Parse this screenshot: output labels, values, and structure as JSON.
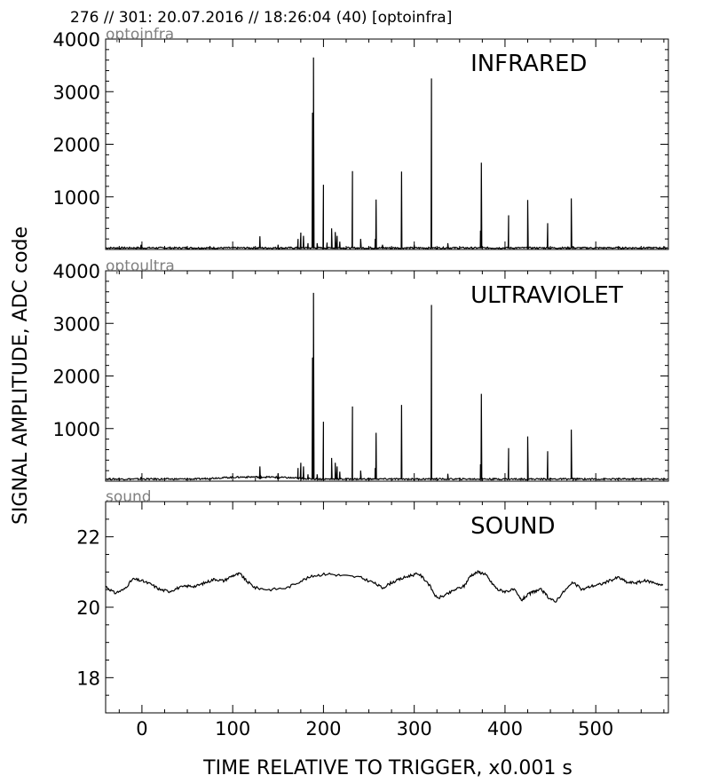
{
  "header": {
    "text": "276 // 301:   20.07.2016 // 18:26:04 (40)  [optoinfra]"
  },
  "axes": {
    "ylabel": "SIGNAL AMPLITUDE,  ADC code",
    "xlabel": "TIME RELATIVE TO TRIGGER,   x0.001 s"
  },
  "chart_data": [
    {
      "type": "line",
      "channel": "optoinfra",
      "title": "INFRARED",
      "xlim": [
        -40,
        580
      ],
      "ylim": [
        0,
        4000
      ],
      "yticks": [
        1000,
        2000,
        3000,
        4000
      ],
      "xticks": [
        0,
        100,
        200,
        300,
        400,
        500
      ],
      "grid": false,
      "baseline": 30,
      "peaks": [
        [
          -1,
          90
        ],
        [
          130,
          250
        ],
        [
          150,
          90
        ],
        [
          172,
          200
        ],
        [
          175,
          320
        ],
        [
          178,
          260
        ],
        [
          183,
          120
        ],
        [
          188,
          2600
        ],
        [
          189,
          3650
        ],
        [
          193,
          120
        ],
        [
          200,
          1230
        ],
        [
          204,
          130
        ],
        [
          209,
          400
        ],
        [
          213,
          330
        ],
        [
          215,
          260
        ],
        [
          218,
          150
        ],
        [
          232,
          1490
        ],
        [
          241,
          200
        ],
        [
          257,
          200
        ],
        [
          258,
          950
        ],
        [
          265,
          90
        ],
        [
          286,
          1480
        ],
        [
          300,
          90
        ],
        [
          319,
          3250
        ],
        [
          337,
          120
        ],
        [
          373,
          360
        ],
        [
          374,
          1650
        ],
        [
          404,
          650
        ],
        [
          425,
          940
        ],
        [
          447,
          500
        ],
        [
          473,
          970
        ]
      ]
    },
    {
      "type": "line",
      "channel": "optoultra",
      "title": "ULTRAVIOLET",
      "xlim": [
        -40,
        580
      ],
      "ylim": [
        0,
        4000
      ],
      "yticks": [
        1000,
        2000,
        3000,
        4000
      ],
      "xticks": [
        0,
        100,
        200,
        300,
        400,
        500
      ],
      "grid": false,
      "baseline": 40,
      "peaks": [
        [
          -1,
          80
        ],
        [
          130,
          280
        ],
        [
          150,
          150
        ],
        [
          172,
          250
        ],
        [
          175,
          350
        ],
        [
          178,
          280
        ],
        [
          183,
          130
        ],
        [
          188,
          2350
        ],
        [
          189,
          3580
        ],
        [
          193,
          130
        ],
        [
          200,
          1130
        ],
        [
          209,
          440
        ],
        [
          213,
          350
        ],
        [
          215,
          280
        ],
        [
          218,
          180
        ],
        [
          232,
          1420
        ],
        [
          241,
          200
        ],
        [
          257,
          250
        ],
        [
          258,
          920
        ],
        [
          286,
          1450
        ],
        [
          319,
          3350
        ],
        [
          337,
          140
        ],
        [
          373,
          320
        ],
        [
          374,
          1660
        ],
        [
          404,
          630
        ],
        [
          425,
          850
        ],
        [
          447,
          570
        ],
        [
          473,
          980
        ]
      ]
    },
    {
      "type": "line",
      "channel": "sound",
      "title": "SOUND",
      "xlim": [
        -40,
        580
      ],
      "ylim": [
        17,
        23
      ],
      "yticks": [
        18,
        20,
        22
      ],
      "xticks": [
        0,
        100,
        200,
        300,
        400,
        500
      ],
      "grid": false,
      "x": [
        -40,
        -30,
        -20,
        -10,
        0,
        10,
        20,
        30,
        40,
        50,
        60,
        70,
        80,
        90,
        100,
        108,
        115,
        125,
        140,
        160,
        175,
        190,
        205,
        220,
        240,
        255,
        265,
        275,
        285,
        295,
        305,
        315,
        325,
        335,
        345,
        355,
        362,
        370,
        378,
        385,
        392,
        400,
        410,
        418,
        425,
        432,
        440,
        447,
        455,
        465,
        475,
        485,
        495,
        505,
        515,
        525,
        535,
        545,
        555,
        565,
        575
      ],
      "values": [
        20.6,
        20.4,
        20.5,
        20.8,
        20.75,
        20.65,
        20.5,
        20.45,
        20.55,
        20.6,
        20.6,
        20.7,
        20.8,
        20.75,
        20.9,
        20.95,
        20.75,
        20.55,
        20.5,
        20.55,
        20.75,
        20.9,
        20.95,
        20.9,
        20.85,
        20.7,
        20.55,
        20.7,
        20.8,
        20.9,
        20.95,
        20.7,
        20.25,
        20.35,
        20.5,
        20.6,
        20.9,
        21.0,
        20.95,
        20.7,
        20.5,
        20.45,
        20.5,
        20.2,
        20.35,
        20.45,
        20.5,
        20.3,
        20.15,
        20.45,
        20.7,
        20.5,
        20.6,
        20.65,
        20.75,
        20.85,
        20.7,
        20.7,
        20.75,
        20.7,
        20.6
      ]
    }
  ]
}
